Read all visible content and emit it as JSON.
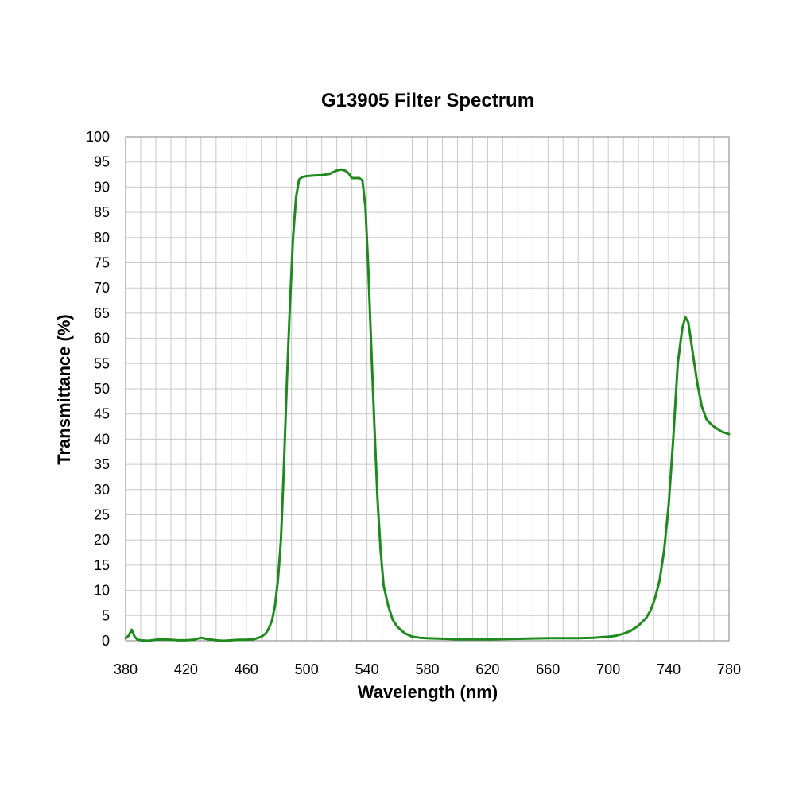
{
  "chart_data": {
    "type": "line",
    "title": "G13905 Filter Spectrum",
    "xlabel": "Wavelength (nm)",
    "ylabel": "Transmittance (%)",
    "xlim": [
      380,
      780
    ],
    "ylim": [
      0,
      100
    ],
    "x_ticks": [
      380,
      420,
      460,
      500,
      540,
      580,
      620,
      660,
      700,
      740,
      780
    ],
    "y_ticks": [
      0,
      5,
      10,
      15,
      20,
      25,
      30,
      35,
      40,
      45,
      50,
      55,
      60,
      65,
      70,
      75,
      80,
      85,
      90,
      95,
      100
    ],
    "x_minor_step": 10,
    "y_minor_step": 5,
    "grid": true,
    "legend": "none",
    "line_color": "#1e8a1e",
    "series": [
      {
        "color": "#1e8a1e",
        "points": [
          [
            380,
            0.5
          ],
          [
            382,
            1.0
          ],
          [
            384,
            2.2
          ],
          [
            386,
            0.8
          ],
          [
            388,
            0.2
          ],
          [
            390,
            0.1
          ],
          [
            395,
            0.0
          ],
          [
            400,
            0.2
          ],
          [
            405,
            0.3
          ],
          [
            410,
            0.2
          ],
          [
            415,
            0.1
          ],
          [
            420,
            0.1
          ],
          [
            425,
            0.2
          ],
          [
            430,
            0.6
          ],
          [
            435,
            0.3
          ],
          [
            440,
            0.1
          ],
          [
            445,
            0.0
          ],
          [
            450,
            0.1
          ],
          [
            455,
            0.2
          ],
          [
            460,
            0.2
          ],
          [
            465,
            0.3
          ],
          [
            470,
            0.8
          ],
          [
            473,
            1.5
          ],
          [
            475,
            2.5
          ],
          [
            477,
            4.0
          ],
          [
            479,
            7.0
          ],
          [
            481,
            12.0
          ],
          [
            483,
            20.0
          ],
          [
            485,
            35.0
          ],
          [
            487,
            52.0
          ],
          [
            489,
            67.0
          ],
          [
            491,
            80.0
          ],
          [
            493,
            88.0
          ],
          [
            495,
            91.5
          ],
          [
            497,
            92.0
          ],
          [
            500,
            92.2
          ],
          [
            505,
            92.3
          ],
          [
            510,
            92.4
          ],
          [
            515,
            92.6
          ],
          [
            520,
            93.3
          ],
          [
            523,
            93.5
          ],
          [
            526,
            93.2
          ],
          [
            528,
            92.7
          ],
          [
            530,
            91.8
          ],
          [
            533,
            91.8
          ],
          [
            535,
            91.8
          ],
          [
            537,
            91.3
          ],
          [
            539,
            86.0
          ],
          [
            541,
            73.0
          ],
          [
            543,
            57.0
          ],
          [
            545,
            42.0
          ],
          [
            547,
            28.0
          ],
          [
            549,
            18.0
          ],
          [
            551,
            11.0
          ],
          [
            554,
            7.0
          ],
          [
            557,
            4.2
          ],
          [
            560,
            2.8
          ],
          [
            565,
            1.5
          ],
          [
            570,
            0.8
          ],
          [
            575,
            0.6
          ],
          [
            580,
            0.5
          ],
          [
            600,
            0.3
          ],
          [
            620,
            0.3
          ],
          [
            640,
            0.4
          ],
          [
            660,
            0.5
          ],
          [
            670,
            0.5
          ],
          [
            680,
            0.5
          ],
          [
            690,
            0.6
          ],
          [
            700,
            0.8
          ],
          [
            705,
            1.0
          ],
          [
            710,
            1.4
          ],
          [
            715,
            2.0
          ],
          [
            720,
            3.0
          ],
          [
            725,
            4.5
          ],
          [
            728,
            6.0
          ],
          [
            731,
            8.5
          ],
          [
            734,
            12.0
          ],
          [
            737,
            18.0
          ],
          [
            740,
            27.0
          ],
          [
            743,
            40.0
          ],
          [
            746,
            55.0
          ],
          [
            749,
            62.0
          ],
          [
            751,
            64.2
          ],
          [
            753,
            63.2
          ],
          [
            756,
            57.0
          ],
          [
            759,
            51.0
          ],
          [
            762,
            46.5
          ],
          [
            765,
            44.0
          ],
          [
            768,
            43.0
          ],
          [
            770,
            42.5
          ],
          [
            775,
            41.5
          ],
          [
            780,
            41.0
          ]
        ]
      }
    ]
  }
}
